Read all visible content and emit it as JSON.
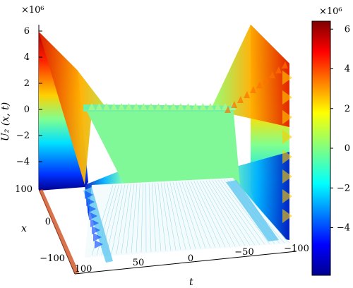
{
  "chart_data": {
    "type": "surface3d",
    "z_label": "U₂ (x, t)",
    "x_label": "x",
    "t_label": "t",
    "z_scale_label": "×10⁶",
    "z_ticks": [
      "6",
      "4",
      "2",
      "0",
      "−2",
      "−4"
    ],
    "z_tick_values": [
      6,
      4,
      2,
      0,
      -2,
      -4
    ],
    "x_ticks": [
      "100",
      "0",
      "−100"
    ],
    "t_ticks": [
      "100",
      "50",
      "0",
      "−50",
      "−100"
    ],
    "colorbar_scale_label": "×10⁶",
    "colorbar_ticks": [
      "6",
      "4",
      "2",
      "0",
      "−2",
      "−4"
    ],
    "colorbar_tick_values": [
      6,
      4,
      2,
      0,
      -2,
      -4
    ],
    "zlim": [
      -6,
      6
    ],
    "xlim": [
      -100,
      100
    ],
    "tlim": [
      -100,
      100
    ],
    "colormap": "jet",
    "description_values": {
      "central_plateau_value": 0,
      "edge_peak_value": 6,
      "edge_trough_value": -6
    }
  }
}
